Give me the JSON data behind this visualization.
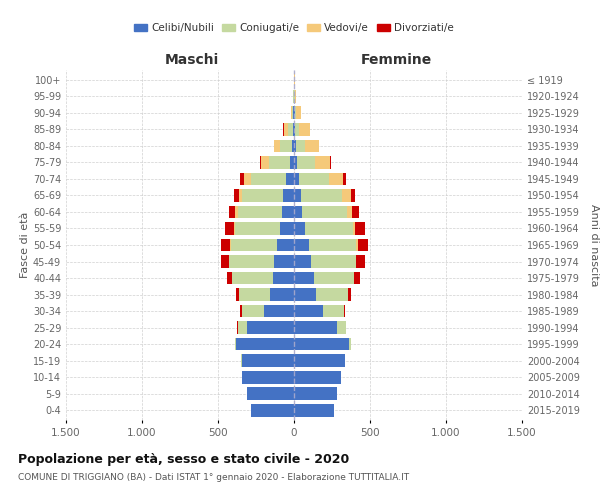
{
  "age_groups": [
    "0-4",
    "5-9",
    "10-14",
    "15-19",
    "20-24",
    "25-29",
    "30-34",
    "35-39",
    "40-44",
    "45-49",
    "50-54",
    "55-59",
    "60-64",
    "65-69",
    "70-74",
    "75-79",
    "80-84",
    "85-89",
    "90-94",
    "95-99",
    "100+"
  ],
  "birth_years": [
    "2015-2019",
    "2010-2014",
    "2005-2009",
    "2000-2004",
    "1995-1999",
    "1990-1994",
    "1985-1989",
    "1980-1984",
    "1975-1979",
    "1970-1974",
    "1965-1969",
    "1960-1964",
    "1955-1959",
    "1950-1954",
    "1945-1949",
    "1940-1944",
    "1935-1939",
    "1930-1934",
    "1925-1929",
    "1920-1924",
    "≤ 1919"
  ],
  "colors": {
    "celibi": "#4472c4",
    "coniugati": "#c5d9a0",
    "vedovi": "#f5c97a",
    "divorziati": "#cc0000"
  },
  "males": {
    "celibi": [
      285,
      310,
      340,
      345,
      380,
      310,
      200,
      155,
      140,
      130,
      115,
      90,
      80,
      75,
      55,
      25,
      12,
      8,
      4,
      2,
      2
    ],
    "coniugati": [
      0,
      0,
      0,
      2,
      10,
      60,
      145,
      210,
      270,
      295,
      300,
      300,
      290,
      270,
      230,
      140,
      80,
      30,
      8,
      2,
      0
    ],
    "vedovi": [
      0,
      0,
      0,
      0,
      0,
      0,
      0,
      0,
      0,
      2,
      5,
      8,
      15,
      20,
      45,
      50,
      40,
      30,
      10,
      2,
      0
    ],
    "divorziati": [
      0,
      0,
      0,
      0,
      0,
      2,
      8,
      18,
      30,
      55,
      60,
      55,
      45,
      30,
      25,
      8,
      2,
      2,
      0,
      0,
      0
    ]
  },
  "females": {
    "nubili": [
      260,
      285,
      310,
      335,
      360,
      285,
      190,
      145,
      130,
      115,
      100,
      75,
      55,
      45,
      30,
      18,
      12,
      8,
      5,
      2,
      2
    ],
    "coniugate": [
      0,
      0,
      0,
      2,
      15,
      55,
      140,
      210,
      265,
      290,
      310,
      310,
      295,
      270,
      200,
      120,
      60,
      25,
      8,
      2,
      0
    ],
    "vedove": [
      0,
      0,
      0,
      0,
      0,
      0,
      0,
      0,
      2,
      4,
      8,
      15,
      30,
      60,
      90,
      100,
      90,
      70,
      35,
      10,
      2
    ],
    "divorziate": [
      0,
      0,
      0,
      0,
      0,
      2,
      8,
      18,
      35,
      60,
      70,
      65,
      50,
      25,
      20,
      8,
      4,
      2,
      0,
      0,
      0
    ]
  },
  "title": "Popolazione per età, sesso e stato civile - 2020",
  "subtitle": "COMUNE DI TRIGGIANO (BA) - Dati ISTAT 1° gennaio 2020 - Elaborazione TUTTITALIA.IT",
  "xlabel_left": "Maschi",
  "xlabel_right": "Femmine",
  "ylabel_left": "Fasce di età",
  "ylabel_right": "Anni di nascita",
  "xlim": 1500,
  "bg_color": "#ffffff",
  "grid_color": "#cccccc"
}
